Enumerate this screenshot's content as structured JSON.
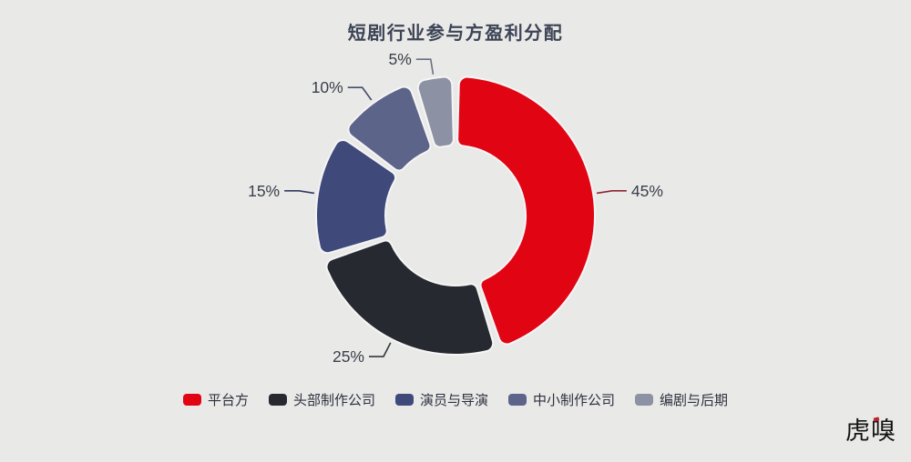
{
  "page": {
    "background": "#e9e9e8"
  },
  "chart_data": {
    "type": "pie",
    "subtype": "donut",
    "title": "短剧行业参与方盈利分配",
    "legend_position": "bottom",
    "inner_radius_ratio": 0.5,
    "rounded_segments": true,
    "slices": [
      {
        "label": "平台方",
        "value": 45,
        "color": "#e10514",
        "leader_color": "#8f2331"
      },
      {
        "label": "头部制作公司",
        "value": 25,
        "color": "#26292f",
        "leader_color": "#34373e"
      },
      {
        "label": "演员与导演",
        "value": 15,
        "color": "#3f4a7b",
        "leader_color": "#303a61"
      },
      {
        "label": "中小制作公司",
        "value": 10,
        "color": "#5d6489",
        "leader_color": "#474d6b"
      },
      {
        "label": "编剧与后期",
        "value": 5,
        "color": "#8c91a3",
        "leader_color": "#6b7081"
      }
    ],
    "value_labels": [
      "45%",
      "25%",
      "15%",
      "10%",
      "5%"
    ],
    "value_label_color": "#3a4049",
    "segment_gap_color": "#f5f5f6"
  },
  "branding": {
    "logo_text": "虎嗅"
  }
}
